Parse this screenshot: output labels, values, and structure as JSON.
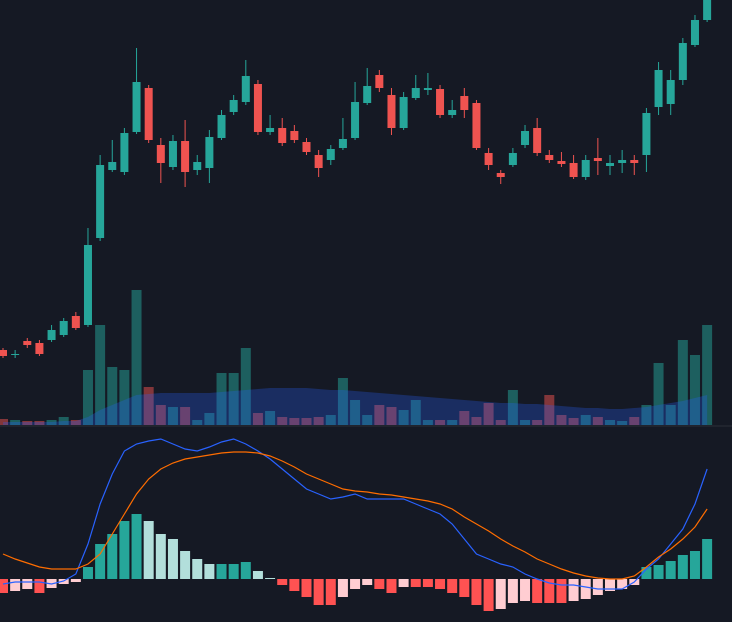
{
  "chart_data": [
    {
      "type": "candlestick",
      "up_color": "#26a69a",
      "down_color": "#ef5350",
      "ylim": [
        0,
        425
      ],
      "open": [
        75,
        70,
        84,
        82,
        85,
        90,
        109,
        100,
        187,
        255,
        253,
        293,
        337,
        280,
        258,
        284,
        255,
        257,
        287,
        313,
        323,
        341,
        293,
        297,
        294,
        283,
        270,
        265,
        277,
        287,
        322,
        350,
        330,
        297,
        327,
        335,
        336,
        310,
        329,
        322,
        272,
        252,
        260,
        280,
        297,
        270,
        264,
        262,
        248,
        267,
        259,
        262,
        265,
        270,
        318,
        321,
        345,
        380,
        405
      ],
      "close": [
        69,
        71,
        80,
        71,
        95,
        104,
        97,
        180,
        260,
        263,
        292,
        343,
        285,
        262,
        284,
        253,
        263,
        288,
        310,
        325,
        349,
        293,
        297,
        282,
        285,
        273,
        257,
        276,
        286,
        323,
        339,
        337,
        297,
        328,
        337,
        337,
        310,
        315,
        315,
        277,
        260,
        248,
        272,
        294,
        272,
        265,
        261,
        248,
        265,
        264,
        262,
        265,
        262,
        312,
        355,
        345,
        382,
        405,
        425
      ],
      "high": [
        77,
        75,
        87,
        85,
        100,
        107,
        113,
        197,
        270,
        285,
        297,
        377,
        340,
        287,
        290,
        305,
        270,
        295,
        315,
        330,
        365,
        345,
        310,
        307,
        300,
        287,
        275,
        280,
        307,
        343,
        357,
        355,
        337,
        333,
        350,
        352,
        340,
        325,
        337,
        325,
        277,
        255,
        277,
        300,
        307,
        275,
        273,
        270,
        270,
        287,
        270,
        275,
        270,
        317,
        363,
        355,
        387,
        410,
        425
      ],
      "low": [
        67,
        67,
        77,
        69,
        83,
        88,
        95,
        98,
        184,
        253,
        250,
        291,
        282,
        242,
        255,
        238,
        250,
        242,
        285,
        310,
        320,
        290,
        290,
        279,
        282,
        270,
        248,
        260,
        275,
        285,
        320,
        333,
        290,
        295,
        325,
        330,
        307,
        307,
        307,
        275,
        255,
        241,
        258,
        277,
        269,
        262,
        258,
        246,
        245,
        250,
        250,
        252,
        250,
        253,
        310,
        310,
        340,
        378,
        403
      ]
    },
    {
      "type": "bar",
      "up_color": "rgba(38,166,154,0.5)",
      "down_color": "rgba(239,83,80,0.5)",
      "ma_color": "#2962ff",
      "ylim": [
        0,
        140
      ],
      "values": [
        6,
        5,
        4,
        4,
        5,
        8,
        5,
        55,
        100,
        58,
        55,
        135,
        38,
        20,
        18,
        18,
        5,
        12,
        52,
        52,
        77,
        12,
        14,
        8,
        7,
        7,
        8,
        10,
        47,
        25,
        10,
        20,
        18,
        15,
        25,
        5,
        5,
        5,
        14,
        8,
        22,
        5,
        35,
        5,
        5,
        30,
        10,
        7,
        10,
        8,
        5,
        4,
        8,
        20,
        62,
        20,
        85,
        70,
        100
      ],
      "ma": [
        3,
        3,
        3,
        3,
        3,
        4,
        4,
        8,
        15,
        20,
        25,
        30,
        31,
        32,
        32,
        32,
        32,
        32,
        33,
        34,
        35,
        36,
        37,
        37,
        37,
        37,
        36,
        35,
        35,
        34,
        33,
        32,
        31,
        30,
        29,
        28,
        27,
        26,
        25,
        24,
        23,
        22,
        22,
        21,
        21,
        20,
        19,
        18,
        17,
        17,
        16,
        16,
        17,
        18,
        20,
        22,
        24,
        27,
        30
      ]
    },
    {
      "type": "macd",
      "macd_color": "#2962ff",
      "signal_color": "#ff6d00",
      "grow_up_color": "#26a69a",
      "fall_up_color": "#b2dfdb",
      "grow_down_color": "#ffcdd2",
      "fall_down_color": "#ff5252",
      "ylim": [
        -43,
        154
      ],
      "histogram": [
        -14,
        -12,
        -10,
        -14,
        -9,
        -5,
        -3,
        12,
        35,
        45,
        58,
        65,
        58,
        45,
        40,
        28,
        20,
        15,
        15,
        15,
        17,
        8,
        1,
        -6,
        -12,
        -18,
        -26,
        -26,
        -18,
        -10,
        -6,
        -10,
        -14,
        -8,
        -8,
        -8,
        -10,
        -14,
        -18,
        -26,
        -32,
        -30,
        -24,
        -22,
        -24,
        -24,
        -24,
        -22,
        -20,
        -16,
        -12,
        -10,
        -6,
        12,
        14,
        18,
        24,
        28,
        40
      ],
      "macd": [
        -5,
        -3,
        -3,
        -3,
        -5,
        -2,
        5,
        35,
        75,
        105,
        128,
        135,
        138,
        140,
        135,
        130,
        128,
        132,
        137,
        140,
        135,
        128,
        120,
        110,
        100,
        90,
        85,
        80,
        82,
        85,
        80,
        80,
        80,
        80,
        75,
        70,
        65,
        55,
        40,
        25,
        20,
        15,
        12,
        5,
        0,
        -4,
        -6,
        -6,
        -8,
        -10,
        -10,
        -10,
        -3,
        10,
        20,
        35,
        50,
        75,
        110
      ],
      "signal": [
        25,
        20,
        16,
        12,
        10,
        10,
        10,
        15,
        25,
        45,
        65,
        85,
        100,
        110,
        116,
        120,
        122,
        124,
        126,
        127,
        127,
        126,
        123,
        118,
        112,
        105,
        100,
        95,
        90,
        88,
        87,
        85,
        84,
        82,
        80,
        78,
        75,
        70,
        62,
        55,
        48,
        40,
        33,
        27,
        20,
        15,
        10,
        6,
        3,
        1,
        0,
        0,
        3,
        12,
        22,
        30,
        40,
        52,
        70
      ]
    }
  ]
}
